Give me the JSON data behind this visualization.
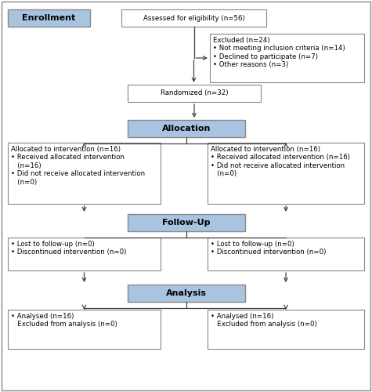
{
  "bg_color": "#ffffff",
  "box_color": "#ffffff",
  "box_edge_color": "#888888",
  "blue_box_color": "#a8c4e0",
  "blue_box_edge_color": "#888888",
  "enrollment_label": "Enrollment",
  "eligibility_text": "Assessed for eligibility (n=56)",
  "excluded_text": "Excluded (n=24)\n• Not meeting inclusion criteria (n=14)\n• Declined to participate (n=7)\n• Other reasons (n=3)",
  "randomized_text": "Randomized (n=32)",
  "allocation_label": "Allocation",
  "alloc_left_text": "Allocated to intervention (n=16)\n• Received allocated intervention\n   (n=16)\n• Did not receive allocated intervention\n   (n=0)",
  "alloc_right_text": "Allocated to intervention (n=16)\n• Received allocated intervention (n=16)\n• Did not receive allocated intervention\n   (n=0)",
  "followup_label": "Follow-Up",
  "followup_left_text": "• Lost to follow-up (n=0)\n• Discontinued intervention (n=0)",
  "followup_right_text": "• Lost to follow-up (n=0)\n• Discontinued intervention (n=0)",
  "analysis_label": "Analysis",
  "analysis_left_text": "• Analysed (n=16)\n   Excluded from analysis (n=0)",
  "analysis_right_text": "• Analysed (n=16)\n   Excluded from analysis (n=0)",
  "font_size": 6.2,
  "label_font_size": 8.0,
  "arrow_color": "#444444",
  "border_color": "#888888"
}
